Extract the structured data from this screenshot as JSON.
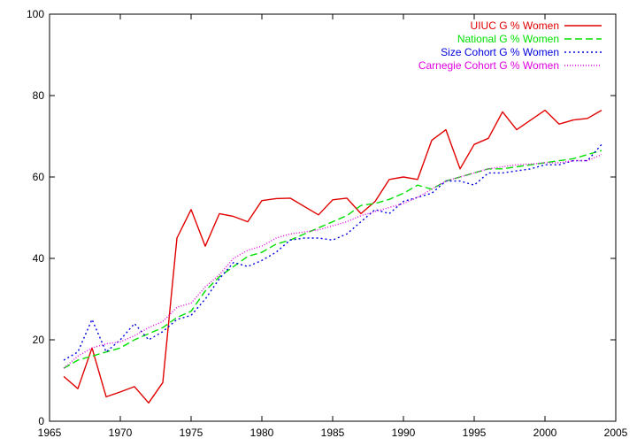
{
  "chart_data": {
    "type": "line",
    "title": "",
    "xlabel": "",
    "ylabel": "",
    "xlim": [
      1965,
      2005
    ],
    "ylim": [
      0,
      100
    ],
    "xticks": [
      1965,
      1970,
      1975,
      1980,
      1985,
      1990,
      1995,
      2000,
      2005
    ],
    "yticks": [
      0,
      20,
      40,
      60,
      80,
      100
    ],
    "x_tick_labels": [
      "1965",
      "1970",
      "1975",
      "1980",
      "1985",
      "1990",
      "1995",
      "2000",
      "2005"
    ],
    "y_tick_labels": [
      "0",
      "20",
      "40",
      "60",
      "80",
      "100"
    ],
    "grid": false,
    "legend": "top-right",
    "series": [
      {
        "name": "UIUC G % Women",
        "color": "#e00000",
        "dash": "solid",
        "x": [
          1966,
          1967,
          1968,
          1969,
          1970,
          1971,
          1972,
          1973,
          1974,
          1975,
          1976,
          1977,
          1978,
          1979,
          1980,
          1981,
          1982,
          1984,
          1985,
          1986,
          1987,
          1988,
          1989,
          1990,
          1991,
          1992,
          1993,
          1994,
          1995,
          1996,
          1997,
          1998,
          1999,
          2000,
          2001,
          2002,
          2003,
          2004
        ],
        "y": [
          11,
          8,
          18,
          6,
          7.2,
          8.5,
          4.5,
          9.5,
          45,
          52,
          43,
          51,
          50.3,
          49,
          54.2,
          54.7,
          54.8,
          50.7,
          54.4,
          54.8,
          51,
          54,
          59.4,
          60,
          59.4,
          69,
          71.6,
          62,
          68,
          69.5,
          76,
          71.6,
          74,
          76.4,
          73,
          74,
          74.4,
          76.4
        ]
      },
      {
        "name": "National G % Women",
        "color": "#00e000",
        "dash": "8,4",
        "x": [
          1966,
          1967,
          1968,
          1969,
          1970,
          1971,
          1972,
          1973,
          1974,
          1975,
          1976,
          1977,
          1978,
          1979,
          1980,
          1981,
          1982,
          1983,
          1984,
          1985,
          1986,
          1987,
          1988,
          1989,
          1990,
          1991,
          1992,
          1993,
          1994,
          1995,
          1996,
          1997,
          1998,
          1999,
          2000,
          2001,
          2002,
          2003,
          2004
        ],
        "y": [
          13,
          15,
          16,
          17,
          18,
          20,
          21.5,
          23,
          25.5,
          27,
          32,
          35.5,
          38,
          40.5,
          41.5,
          43.5,
          44.5,
          46,
          47.5,
          49,
          50.5,
          53,
          53.5,
          54.5,
          56,
          58,
          57,
          59,
          60,
          61,
          62,
          62,
          62.5,
          63,
          63.5,
          64,
          64.5,
          65.5,
          66.5
        ]
      },
      {
        "name": "Size Cohort G % Women",
        "color": "#0000e0",
        "dash": "2,3",
        "x": [
          1966,
          1967,
          1968,
          1969,
          1970,
          1971,
          1972,
          1973,
          1974,
          1975,
          1976,
          1977,
          1978,
          1979,
          1980,
          1981,
          1982,
          1983,
          1984,
          1985,
          1986,
          1987,
          1988,
          1989,
          1990,
          1991,
          1992,
          1993,
          1994,
          1995,
          1996,
          1997,
          1998,
          1999,
          2000,
          2001,
          2002,
          2003,
          2004
        ],
        "y": [
          15,
          17,
          25,
          17,
          20,
          24,
          20,
          22,
          25,
          26,
          30,
          35,
          39,
          38,
          39.5,
          41.5,
          44.5,
          45,
          45,
          44.5,
          46,
          49,
          52,
          51,
          54,
          55,
          56,
          59,
          59,
          58,
          61,
          61,
          61.5,
          62,
          63,
          63,
          64,
          64,
          68
        ]
      },
      {
        "name": "Carnegie Cohort G % Women",
        "color": "#e000e0",
        "dash": "1,2",
        "x": [
          1966,
          1967,
          1968,
          1969,
          1970,
          1971,
          1972,
          1973,
          1974,
          1975,
          1976,
          1977,
          1978,
          1979,
          1980,
          1981,
          1982,
          1983,
          1984,
          1985,
          1986,
          1987,
          1988,
          1989,
          1990,
          1991,
          1992,
          1993,
          1994,
          1995,
          1996,
          1997,
          1998,
          1999,
          2000,
          2001,
          2002,
          2003,
          2004
        ],
        "y": [
          13,
          16,
          18,
          19,
          19.5,
          21,
          23,
          24.5,
          28,
          29,
          33,
          36,
          40,
          42,
          43,
          45,
          46,
          46.5,
          47,
          48,
          49,
          50.5,
          51.5,
          52.5,
          53.5,
          55,
          57,
          59,
          60,
          61,
          62,
          62.5,
          63,
          63.2,
          63.5,
          63.5,
          64,
          64,
          65.5
        ]
      }
    ]
  }
}
